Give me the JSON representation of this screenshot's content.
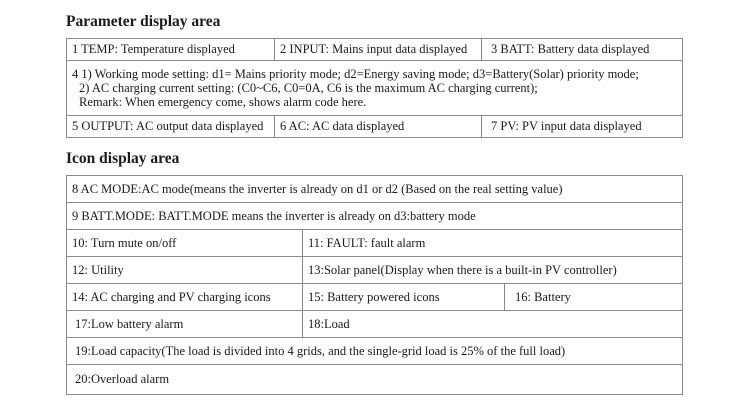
{
  "parameter_section": {
    "title": "Parameter display area",
    "row1": [
      "1 TEMP:  Temperature displayed",
      "2 INPUT: Mains input data displayed",
      "3 BATT: Battery data displayed"
    ],
    "row2": [
      "4 1) Working mode setting: d1= Mains priority mode; d2=Energy saving mode; d3=Battery(Solar) priority mode;",
      "2) AC charging current setting: (C0~C6, C0=0A, C6 is the maximum AC charging current);",
      "Remark: When emergency come, shows alarm code here."
    ],
    "row3": [
      "5 OUTPUT: AC output data displayed",
      "6 AC: AC data displayed",
      "7 PV: PV input data displayed"
    ]
  },
  "icon_section": {
    "title": "Icon display area",
    "r8": "8 AC  MODE:AC mode(means the inverter is already on d1 or d2 (Based on the real setting value)",
    "r9": "9 BATT.MODE:  BATT.MODE means the inverter is already on d3:battery mode",
    "r10": [
      "10: Turn mute on/off",
      "11: FAULT:   fault alarm"
    ],
    "r12": [
      "12: Utility",
      "13:Solar panel(Display when there is a built-in PV controller)"
    ],
    "r14": [
      "14: AC charging and PV charging icons",
      "15: Battery powered icons",
      "16: Battery"
    ],
    "r17": [
      "17:Low battery alarm",
      "18:Load"
    ],
    "r19": "19:Load capacity(The load is divided into 4 grids, and the single-grid load is 25% of the full load)",
    "r20": "20:Overload alarm"
  }
}
